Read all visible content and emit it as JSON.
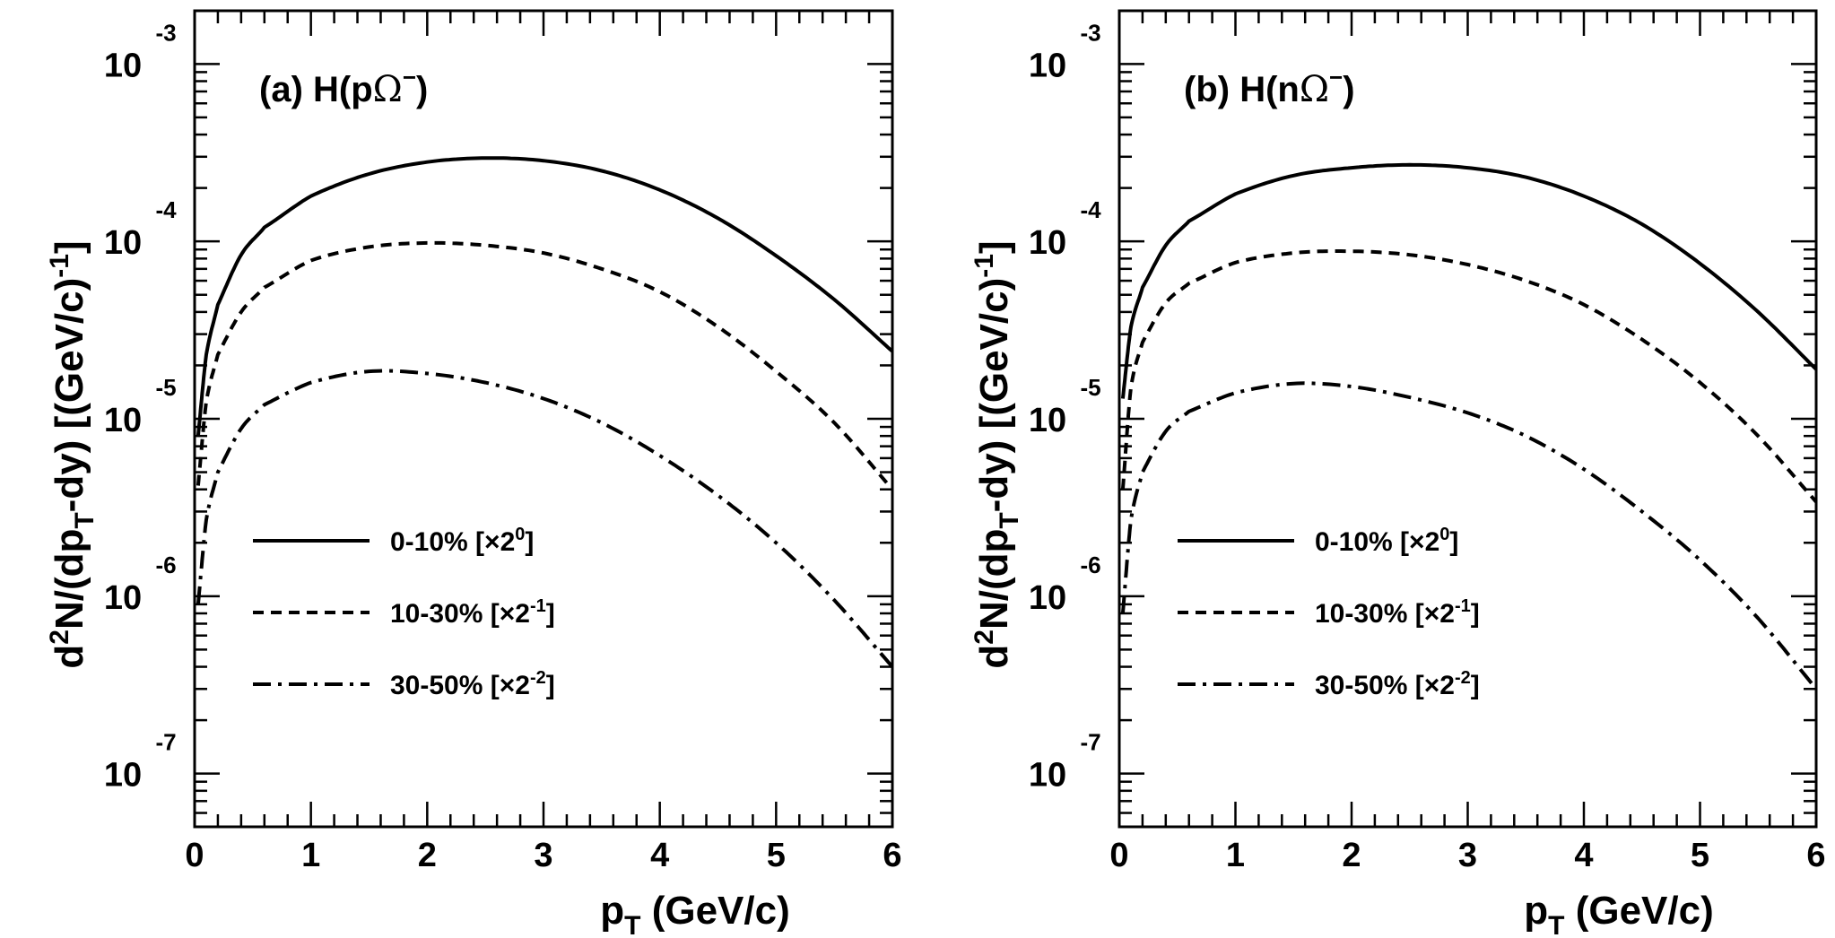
{
  "chart_data": [
    {
      "type": "line",
      "panel_label": "(a) H(p",
      "panel_particle": "Ω",
      "panel_sup": "−",
      "panel_close": ")",
      "xlabel": "p",
      "xlabel_sub": "T",
      "xlabel_unit": "(GeV/c)",
      "ylabel_parts": [
        "d",
        "2",
        "N/(dp",
        "T",
        "-dy)  [(GeV/c)",
        "-1",
        "]"
      ],
      "xlim": [
        0,
        6
      ],
      "ylim_log10": [
        -7.3,
        -2.7
      ],
      "xticks": [
        0,
        1,
        2,
        3,
        4,
        5,
        6
      ],
      "xtick_labels": [
        "0",
        "1",
        "2",
        "3",
        "4",
        "5",
        "6"
      ],
      "yticks_exp": [
        -3,
        -4,
        -5,
        -6,
        -7
      ],
      "ytick_base": "10",
      "ytick_exp_labels": [
        "-3",
        "-4",
        "-5",
        "-6",
        "-7"
      ],
      "legend_position": "bottom-center",
      "series": [
        {
          "name": "0-10% [×2⁰]",
          "legend_main": "0-10% [×2",
          "legend_sup": "0",
          "legend_close": "]",
          "style": "solid",
          "x": [
            0.03,
            0.1,
            0.2,
            0.4,
            0.6,
            1.0,
            1.5,
            2.0,
            2.5,
            3.0,
            3.5,
            4.0,
            4.5,
            5.0,
            5.5,
            6.0
          ],
          "y": [
            8e-06,
            2.3e-05,
            4.4e-05,
            8.4e-05,
            0.00012,
            0.00018,
            0.00024,
            0.00028,
            0.000295,
            0.000285,
            0.00025,
            0.000195,
            0.000135,
            8.3e-05,
            4.7e-05,
            2.4e-05
          ]
        },
        {
          "name": "10-30% [×2⁻¹]",
          "legend_main": "10-30% [×2",
          "legend_sup": "-1",
          "legend_close": "]",
          "style": "dashed",
          "x": [
            0.03,
            0.1,
            0.2,
            0.4,
            0.6,
            1.0,
            1.5,
            2.0,
            2.5,
            3.0,
            3.5,
            4.0,
            4.5,
            5.0,
            5.5,
            6.0
          ],
          "y": [
            4.2e-06,
            1.25e-05,
            2.3e-05,
            4e-05,
            5.5e-05,
            7.8e-05,
            9.3e-05,
            9.8e-05,
            9.5e-05,
            8.6e-05,
            7e-05,
            5.2e-05,
            3.3e-05,
            1.85e-05,
            9.5e-06,
            4e-06
          ]
        },
        {
          "name": "30-50% [×2⁻²]",
          "legend_main": "30-50% [×2",
          "legend_sup": "-2",
          "legend_close": "]",
          "style": "dashdot",
          "x": [
            0.03,
            0.1,
            0.2,
            0.4,
            0.6,
            1.0,
            1.5,
            2.0,
            2.5,
            3.0,
            3.5,
            4.0,
            4.5,
            5.0,
            5.5,
            6.0
          ],
          "y": [
            9e-07,
            2.7e-06,
            5e-06,
            8.8e-06,
            1.2e-05,
            1.6e-05,
            1.85e-05,
            1.8e-05,
            1.6e-05,
            1.3e-05,
            9.5e-06,
            6.2e-06,
            3.7e-06,
            2e-06,
            9.5e-07,
            4e-07
          ]
        }
      ]
    },
    {
      "type": "line",
      "panel_label": "(b) H(n",
      "panel_particle": "Ω",
      "panel_sup": "−",
      "panel_close": ")",
      "xlabel": "p",
      "xlabel_sub": "T",
      "xlabel_unit": "(GeV/c)",
      "ylabel_parts": [
        "d",
        "2",
        "N/(dp",
        "T",
        "-dy)  [(GeV/c)",
        "-1",
        "]"
      ],
      "xlim": [
        0,
        6
      ],
      "ylim_log10": [
        -7.3,
        -2.7
      ],
      "xticks": [
        0,
        1,
        2,
        3,
        4,
        5,
        6
      ],
      "xtick_labels": [
        "0",
        "1",
        "2",
        "3",
        "4",
        "5",
        "6"
      ],
      "yticks_exp": [
        -3,
        -4,
        -5,
        -6,
        -7
      ],
      "ytick_base": "10",
      "ytick_exp_labels": [
        "-3",
        "-4",
        "-5",
        "-6",
        "-7"
      ],
      "legend_position": "bottom-center",
      "series": [
        {
          "name": "0-10% [×2⁰]",
          "legend_main": "0-10% [×2",
          "legend_sup": "0",
          "legend_close": "]",
          "style": "solid",
          "x": [
            0.03,
            0.1,
            0.2,
            0.4,
            0.6,
            1.0,
            1.5,
            2.0,
            2.5,
            3.0,
            3.5,
            4.0,
            4.5,
            5.0,
            5.5,
            6.0
          ],
          "y": [
            1.3e-05,
            3.3e-05,
            5.5e-05,
            9.5e-05,
            0.00013,
            0.000185,
            0.000235,
            0.00026,
            0.00027,
            0.00026,
            0.00023,
            0.00018,
            0.000125,
            7.5e-05,
            4e-05,
            1.9e-05
          ]
        },
        {
          "name": "10-30% [×2⁻¹]",
          "legend_main": "10-30% [×2",
          "legend_sup": "-1",
          "legend_close": "]",
          "style": "dashed",
          "x": [
            0.03,
            0.1,
            0.2,
            0.4,
            0.6,
            1.0,
            1.5,
            2.0,
            2.5,
            3.0,
            3.5,
            4.0,
            4.5,
            5.0,
            5.5,
            6.0
          ],
          "y": [
            4e-06,
            1.5e-05,
            2.7e-05,
            4.5e-05,
            5.8e-05,
            7.6e-05,
            8.6e-05,
            8.8e-05,
            8.4e-05,
            7.4e-05,
            6e-05,
            4.4e-05,
            2.8e-05,
            1.6e-05,
            8e-06,
            3.4e-06
          ]
        },
        {
          "name": "30-50% [×2⁻²]",
          "legend_main": "30-50% [×2",
          "legend_sup": "-2",
          "legend_close": "]",
          "style": "dashdot",
          "x": [
            0.03,
            0.1,
            0.2,
            0.4,
            0.6,
            1.0,
            1.5,
            2.0,
            2.5,
            3.0,
            3.5,
            4.0,
            4.5,
            5.0,
            5.5,
            6.0
          ],
          "y": [
            8e-07,
            2.7e-06,
            5e-06,
            8.5e-06,
            1.1e-05,
            1.4e-05,
            1.58e-05,
            1.52e-05,
            1.32e-05,
            1.08e-05,
            8e-06,
            5.2e-06,
            3e-06,
            1.6e-06,
            7.5e-07,
            3e-07
          ]
        }
      ]
    }
  ]
}
